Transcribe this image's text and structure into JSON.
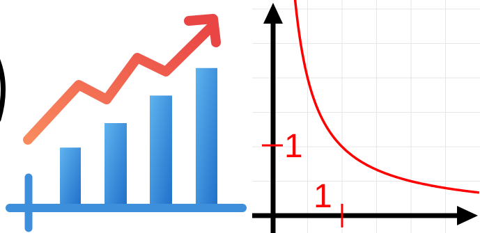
{
  "colors": {
    "arrow_start": "#f98a5e",
    "arrow_end": "#e94545",
    "bar_light": "#5fb3ee",
    "bar_dark": "#1f6fca",
    "baseline": "#3d8fdc",
    "axis": "#000000",
    "curve": "#ff0000",
    "grid": "#e6e6e6"
  },
  "icons": {
    "left": "growth-chart-icon",
    "right": "reciprocal-function-graph-icon"
  },
  "growth_icon": {
    "bar_levels": [
      0.39,
      0.55,
      0.73,
      0.91
    ]
  },
  "graph": {
    "function": "y = 1/x",
    "x_label": "1",
    "y_label": "1",
    "x_tick_value": 1,
    "y_tick_value": 1
  }
}
